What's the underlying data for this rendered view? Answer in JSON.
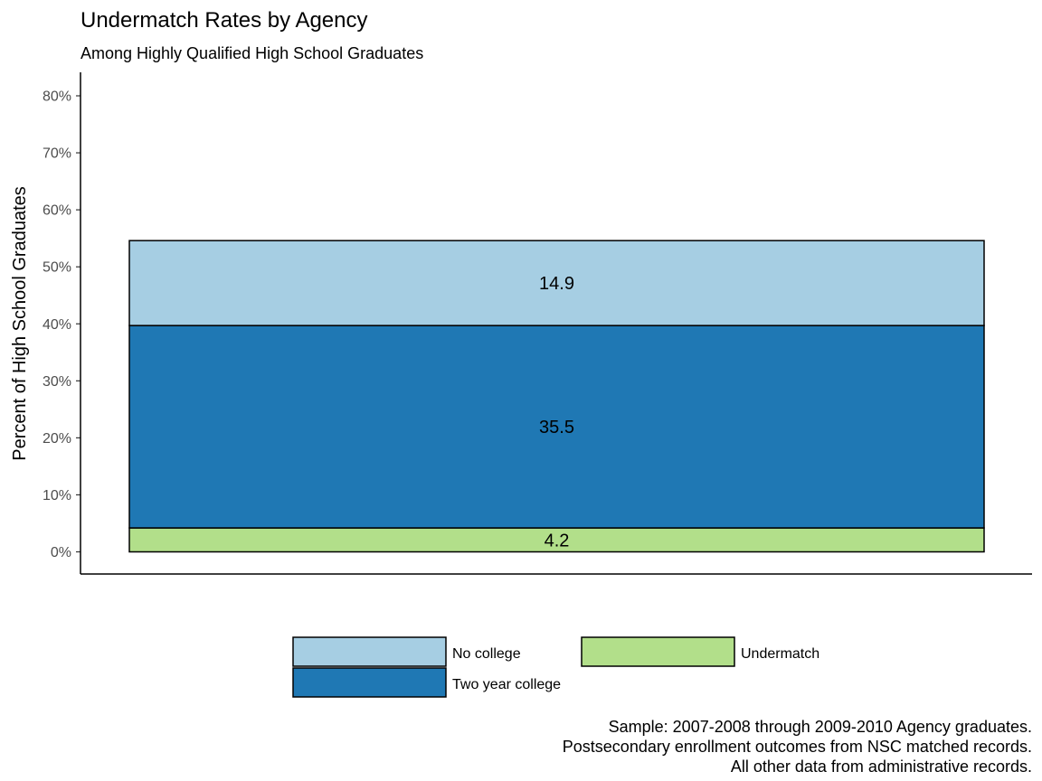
{
  "chart_data": {
    "type": "bar",
    "stacked": true,
    "title": "Undermatch Rates by Agency",
    "subtitle": "Among Highly Qualified High School Graduates",
    "xlabel": "",
    "ylabel": "Percent of High School Graduates",
    "ylim": [
      0,
      80
    ],
    "yticks": [
      0,
      10,
      20,
      30,
      40,
      50,
      60,
      70,
      80
    ],
    "ytick_labels": [
      "0%",
      "10%",
      "20%",
      "30%",
      "40%",
      "50%",
      "60%",
      "70%",
      "80%"
    ],
    "categories": [
      ""
    ],
    "series": [
      {
        "name": "Undermatch",
        "values": [
          4.2
        ],
        "label": "4.2",
        "color": "#b2df8a"
      },
      {
        "name": "Two year college",
        "values": [
          35.5
        ],
        "label": "35.5",
        "color": "#1f78b4"
      },
      {
        "name": "No college",
        "values": [
          14.9
        ],
        "label": "14.9",
        "color": "#a6cee3"
      }
    ],
    "legend": {
      "position": "bottom",
      "order": [
        "No college",
        "Two year college",
        "Undermatch"
      ]
    },
    "grid": false,
    "caption": [
      "Sample: 2007-2008 through 2009-2010 Agency graduates.",
      "Postsecondary enrollment outcomes from NSC matched records.",
      "All other data from administrative records."
    ]
  }
}
